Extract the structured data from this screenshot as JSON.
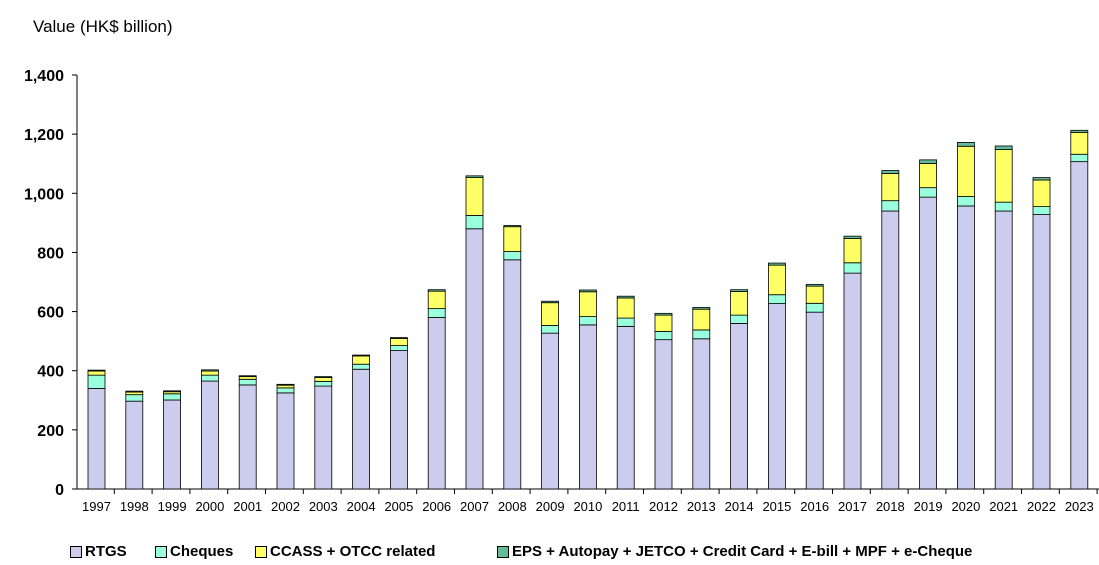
{
  "chart_data": {
    "type": "bar",
    "stacked": true,
    "title": "",
    "xlabel": "",
    "ylabel": "Value (HK$ billion)",
    "ylim": [
      0,
      1400
    ],
    "yticks": [
      "0",
      "200",
      "400",
      "600",
      "800",
      "1,000",
      "1,200",
      "1,400"
    ],
    "ytick_values": [
      0,
      200,
      400,
      600,
      800,
      1000,
      1200,
      1400
    ],
    "grid": false,
    "legend_position": "bottom",
    "categories": [
      "1997",
      "1998",
      "1999",
      "2000",
      "2001",
      "2002",
      "2003",
      "2004",
      "2005",
      "2006",
      "2007",
      "2008",
      "2009",
      "2010",
      "2011",
      "2012",
      "2013",
      "2014",
      "2015",
      "2016",
      "2017",
      "2018",
      "2019",
      "2020",
      "2021",
      "2022",
      "2023"
    ],
    "series": [
      {
        "name": "RTGS",
        "color": "#ccccee",
        "values": [
          340,
          297,
          301,
          365,
          352,
          325,
          348,
          405,
          468,
          580,
          880,
          775,
          527,
          555,
          550,
          505,
          508,
          560,
          627,
          598,
          730,
          940,
          987,
          957,
          940,
          928,
          1107
        ]
      },
      {
        "name": "Cheques",
        "color": "#99ffdd",
        "values": [
          45,
          22,
          21,
          20,
          19,
          17,
          16,
          17,
          17,
          30,
          45,
          28,
          26,
          28,
          28,
          28,
          30,
          28,
          30,
          30,
          35,
          35,
          32,
          32,
          30,
          27,
          25
        ]
      },
      {
        "name": "CCASS + OTCC related",
        "color": "#ffff66",
        "values": [
          14,
          9,
          7,
          14,
          9,
          9,
          13,
          28,
          24,
          59,
          128,
          84,
          77,
          84,
          68,
          55,
          70,
          80,
          100,
          58,
          82,
          92,
          82,
          170,
          178,
          90,
          74
        ]
      },
      {
        "name": "EPS + Autopay + JETCO + Credit Card + E-bill + MPF + e-Cheque",
        "color": "#66bb99",
        "values": [
          3,
          3,
          3,
          4,
          3,
          3,
          3,
          3,
          3,
          5,
          6,
          4,
          5,
          6,
          6,
          6,
          6,
          6,
          7,
          6,
          8,
          10,
          12,
          13,
          12,
          8,
          7
        ]
      }
    ]
  }
}
